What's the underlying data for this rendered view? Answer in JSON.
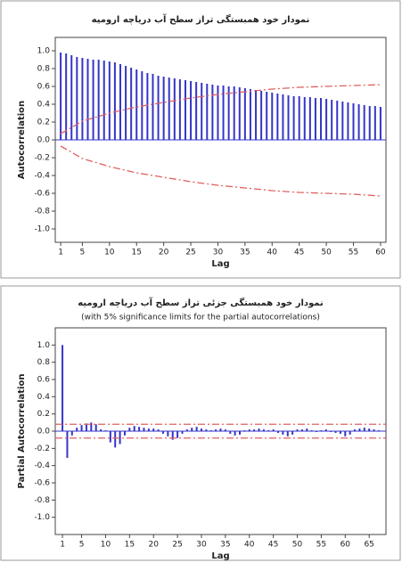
{
  "chart_data": [
    {
      "type": "bar",
      "title": "نمودار خود همبستگی تراز سطح آب دریاچه ارومیه",
      "x_label": "Lag",
      "y_label": "Autocorrelation",
      "color": "#3535c8",
      "limit_color": "#e06060",
      "x": [
        1,
        2,
        3,
        4,
        5,
        6,
        7,
        8,
        9,
        10,
        11,
        12,
        13,
        14,
        15,
        16,
        17,
        18,
        19,
        20,
        21,
        22,
        23,
        24,
        25,
        26,
        27,
        28,
        29,
        30,
        31,
        32,
        33,
        34,
        35,
        36,
        37,
        38,
        39,
        40,
        41,
        42,
        43,
        44,
        45,
        46,
        47,
        48,
        49,
        50,
        51,
        52,
        53,
        54,
        55,
        56,
        57,
        58,
        59,
        60
      ],
      "values": [
        0.98,
        0.97,
        0.95,
        0.93,
        0.92,
        0.91,
        0.9,
        0.9,
        0.89,
        0.88,
        0.87,
        0.85,
        0.83,
        0.81,
        0.79,
        0.77,
        0.75,
        0.74,
        0.72,
        0.71,
        0.7,
        0.69,
        0.68,
        0.67,
        0.66,
        0.65,
        0.64,
        0.63,
        0.62,
        0.61,
        0.61,
        0.6,
        0.6,
        0.59,
        0.58,
        0.57,
        0.56,
        0.55,
        0.54,
        0.53,
        0.52,
        0.51,
        0.5,
        0.49,
        0.49,
        0.48,
        0.48,
        0.47,
        0.47,
        0.46,
        0.45,
        0.44,
        0.43,
        0.42,
        0.41,
        0.4,
        0.39,
        0.38,
        0.38,
        0.37
      ],
      "upper_limit": {
        "x": [
          1,
          5,
          10,
          15,
          20,
          25,
          30,
          35,
          40,
          45,
          50,
          55,
          60
        ],
        "values": [
          0.07,
          0.21,
          0.3,
          0.37,
          0.42,
          0.47,
          0.51,
          0.54,
          0.57,
          0.59,
          0.6,
          0.61,
          0.62
        ]
      },
      "lower_limit": {
        "x": [
          1,
          5,
          10,
          15,
          20,
          25,
          30,
          35,
          40,
          45,
          50,
          55,
          60
        ],
        "values": [
          -0.07,
          -0.21,
          -0.3,
          -0.37,
          -0.42,
          -0.47,
          -0.51,
          -0.54,
          -0.57,
          -0.59,
          -0.6,
          -0.61,
          -0.63
        ]
      },
      "xlim": [
        0,
        61
      ],
      "xticks": [
        1,
        5,
        10,
        15,
        20,
        25,
        30,
        35,
        40,
        45,
        50,
        55,
        60
      ],
      "ylim": [
        -1.15,
        1.15
      ],
      "yticks": [
        {
          "value": 1,
          "label": "1.0"
        },
        0.8,
        0.6,
        0.4,
        0.2,
        {
          "value": 0,
          "label": "0.0"
        },
        -0.2,
        -0.4,
        -0.6,
        -0.8,
        {
          "value": -1,
          "label": "-1.0"
        }
      ]
    },
    {
      "type": "bar",
      "title": "نمودار خود همبستگی جزئی تراز سطح آب دریاچه ارومیه",
      "subtitle": "(with 5% significance limits for the partial autocorrelations)",
      "x_label": "Lag",
      "y_label": "Partial Autocorrelation",
      "color": "#3535c8",
      "limit_color": "#e06060",
      "x": [
        1,
        2,
        3,
        4,
        5,
        6,
        7,
        8,
        9,
        10,
        11,
        12,
        13,
        14,
        15,
        16,
        17,
        18,
        19,
        20,
        21,
        22,
        23,
        24,
        25,
        26,
        27,
        28,
        29,
        30,
        31,
        32,
        33,
        34,
        35,
        36,
        37,
        38,
        39,
        40,
        41,
        42,
        43,
        44,
        45,
        46,
        47,
        48,
        49,
        50,
        51,
        52,
        53,
        54,
        55,
        56,
        57,
        58,
        59,
        60,
        61,
        62,
        63,
        64,
        65,
        66,
        67
      ],
      "values": [
        1.0,
        -0.31,
        -0.05,
        0.04,
        0.07,
        0.09,
        0.1,
        0.08,
        0.02,
        0.01,
        -0.13,
        -0.19,
        -0.15,
        -0.05,
        0.04,
        0.06,
        0.05,
        0.04,
        0.03,
        0.03,
        0.02,
        -0.03,
        -0.06,
        -0.1,
        -0.08,
        -0.03,
        0.02,
        0.04,
        0.05,
        0.03,
        0.02,
        0.01,
        0.02,
        0.03,
        0.02,
        -0.03,
        -0.05,
        -0.04,
        0.01,
        0.02,
        0.02,
        0.03,
        0.02,
        0.01,
        0.02,
        -0.02,
        -0.04,
        -0.06,
        -0.04,
        0.02,
        0.02,
        0.03,
        0.01,
        -0.01,
        0.01,
        0.02,
        -0.01,
        -0.02,
        -0.03,
        -0.06,
        -0.04,
        0.02,
        0.03,
        0.04,
        0.03,
        0.02,
        0.01
      ],
      "significance_limits": [
        0.08,
        -0.08
      ],
      "xlim": [
        -0.5,
        68.5
      ],
      "xticks": [
        1,
        5,
        10,
        15,
        20,
        25,
        30,
        35,
        40,
        45,
        50,
        55,
        60,
        65
      ],
      "ylim": [
        -1.2,
        1.2
      ],
      "yticks": [
        {
          "value": 1,
          "label": "1.0"
        },
        0.8,
        0.6,
        0.4,
        0.2,
        {
          "value": 0,
          "label": "0.0"
        },
        -0.2,
        -0.4,
        -0.6,
        -0.8,
        {
          "value": -1,
          "label": "-1.0"
        }
      ]
    }
  ]
}
